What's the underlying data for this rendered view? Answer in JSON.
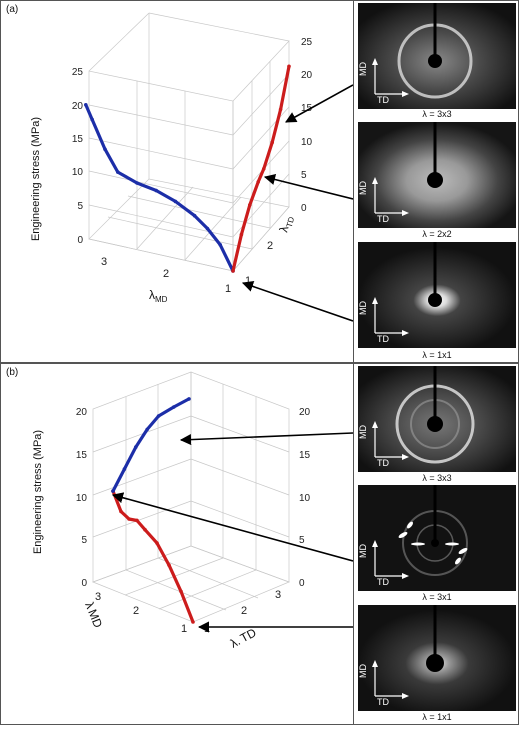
{
  "panels": [
    {
      "label": "(a)",
      "y_axis_label": "Engineering stress (MPa)",
      "left_axis_ticks": [
        "0",
        "5",
        "10",
        "15",
        "20",
        "25"
      ],
      "right_axis_ticks": [
        "0",
        "5",
        "10",
        "15",
        "20",
        "25"
      ],
      "md_axis_label_main": "λ",
      "md_axis_label_sub": "MD",
      "md_ticks": [
        "3",
        "2",
        "1"
      ],
      "td_axis_label_main": "λ",
      "td_axis_label_sub": "TD",
      "td_ticks": [
        "1",
        "2"
      ],
      "images": [
        {
          "caption": "λ = 3x3",
          "md": "MD",
          "td": "TD"
        },
        {
          "caption": "λ = 2x2",
          "md": "MD",
          "td": "TD"
        },
        {
          "caption": "λ = 1x1",
          "md": "MD",
          "td": "TD"
        }
      ]
    },
    {
      "label": "(b)",
      "y_axis_label": "Engineering stress (MPa)",
      "left_axis_ticks": [
        "0",
        "5",
        "10",
        "15",
        "20"
      ],
      "right_axis_ticks": [
        "0",
        "5",
        "10",
        "15",
        "20"
      ],
      "md_axis_label_main": "λ",
      "md_axis_label_sub": "MD",
      "md_ticks": [
        "3",
        "2",
        "1"
      ],
      "td_axis_label_main": "λ.",
      "td_axis_label_sub": "TD",
      "td_ticks": [
        "1",
        "2",
        "3"
      ],
      "images": [
        {
          "caption": "λ = 3x3",
          "md": "MD",
          "td": "TD"
        },
        {
          "caption": "λ = 3x1",
          "md": "MD",
          "td": "TD"
        },
        {
          "caption": "λ = 1x1",
          "md": "MD",
          "td": "TD"
        }
      ]
    }
  ],
  "chart_data": [
    {
      "type": "line",
      "panel": "(a)",
      "projection": "3d",
      "zlabel": "Engineering stress (MPa)",
      "xlabel": "λMD",
      "ylabel": "λTD",
      "zlim": [
        0,
        25
      ],
      "grid": true,
      "colors": {
        "blue": "#1c2ea8",
        "red": "#cc1c1c"
      },
      "series": [
        {
          "color": "blue",
          "points": [
            {
              "md": 1.0,
              "td": 1.0,
              "stress": 0.0
            },
            {
              "md": 1.2,
              "td": 1.0,
              "stress": 3.5
            },
            {
              "md": 1.4,
              "td": 1.0,
              "stress": 5.5
            },
            {
              "md": 1.6,
              "td": 1.0,
              "stress": 7.0
            },
            {
              "md": 1.9,
              "td": 1.0,
              "stress": 8.5
            },
            {
              "md": 2.2,
              "td": 1.0,
              "stress": 9.5
            },
            {
              "md": 2.5,
              "td": 1.0,
              "stress": 10.0
            },
            {
              "md": 2.8,
              "td": 1.0,
              "stress": 11.0
            },
            {
              "md": 3.0,
              "td": 1.0,
              "stress": 14.0
            },
            {
              "md": 3.2,
              "td": 1.0,
              "stress": 18.0
            },
            {
              "md": 3.3,
              "td": 1.0,
              "stress": 20.0
            }
          ]
        },
        {
          "color": "red",
          "points": [
            {
              "md": 1.0,
              "td": 1.0,
              "stress": 0.0
            },
            {
              "md": 1.0,
              "td": 1.3,
              "stress": 4.0
            },
            {
              "md": 1.0,
              "td": 1.6,
              "stress": 7.0
            },
            {
              "md": 1.0,
              "td": 1.9,
              "stress": 9.0
            },
            {
              "md": 1.0,
              "td": 2.1,
              "stress": 10.0
            },
            {
              "md": 1.0,
              "td": 2.4,
              "stress": 12.5
            },
            {
              "md": 1.0,
              "td": 2.7,
              "stress": 16.0
            },
            {
              "md": 1.0,
              "td": 3.0,
              "stress": 21.0
            }
          ]
        }
      ]
    },
    {
      "type": "line",
      "panel": "(b)",
      "projection": "3d",
      "zlabel": "Engineering stress (MPa)",
      "xlabel": "λ MD",
      "ylabel": "λ. TD",
      "zlim": [
        0,
        20
      ],
      "grid": true,
      "colors": {
        "red": "#cc1c1c",
        "blue": "#1c2ea8"
      },
      "series": [
        {
          "color": "red",
          "points": [
            {
              "md": 1.0,
              "td": 1.0,
              "stress": 0.0
            },
            {
              "md": 1.3,
              "td": 1.0,
              "stress": 3.0
            },
            {
              "md": 1.6,
              "td": 1.0,
              "stress": 5.5
            },
            {
              "md": 1.9,
              "td": 1.0,
              "stress": 7.5
            },
            {
              "md": 2.2,
              "td": 1.0,
              "stress": 8.5
            },
            {
              "md": 2.4,
              "td": 1.0,
              "stress": 9.2
            },
            {
              "md": 2.6,
              "td": 1.0,
              "stress": 9.0
            },
            {
              "md": 2.8,
              "td": 1.0,
              "stress": 9.5
            },
            {
              "md": 3.0,
              "td": 1.0,
              "stress": 11.5
            }
          ]
        },
        {
          "color": "blue",
          "points": [
            {
              "md": 3.0,
              "td": 1.0,
              "stress": 11.5
            },
            {
              "md": 3.0,
              "td": 1.3,
              "stress": 13.5
            },
            {
              "md": 3.0,
              "td": 1.6,
              "stress": 15.5
            },
            {
              "md": 3.0,
              "td": 1.9,
              "stress": 17.0
            },
            {
              "md": 3.0,
              "td": 2.2,
              "stress": 18.0
            },
            {
              "md": 3.0,
              "td": 2.6,
              "stress": 18.3
            },
            {
              "md": 3.0,
              "td": 3.0,
              "stress": 18.5
            }
          ]
        }
      ]
    }
  ]
}
